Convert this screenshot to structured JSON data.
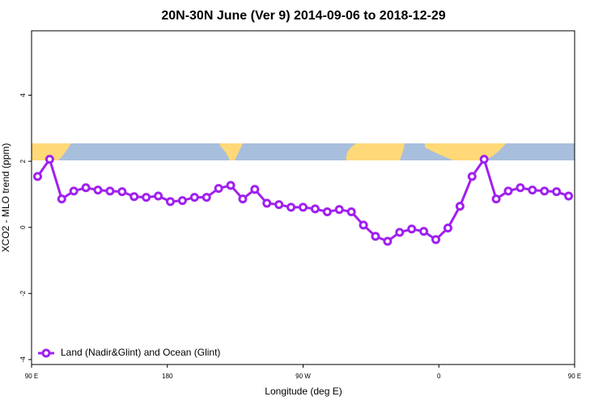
{
  "chart_data": {
    "type": "line",
    "title": "20N-30N June (Ver 9)   2014-09-06 to 2018-12-29",
    "x_label": "Longitude (deg E)",
    "y_label": "XCO2 - MLO trend (ppm)",
    "x": [
      94,
      102,
      110,
      118,
      126,
      134,
      142,
      150,
      158,
      166,
      174,
      182,
      190,
      198,
      206,
      214,
      222,
      230,
      238,
      246,
      254,
      262,
      270,
      278,
      286,
      294,
      302,
      310,
      318,
      326,
      334,
      342,
      350,
      358,
      366,
      374,
      382,
      390,
      398,
      406,
      414,
      422,
      430,
      438,
      446
    ],
    "series": [
      {
        "name": "Land (Nadir&Glint) and Ocean (Glint)",
        "color": "#a020f0",
        "values": [
          1.54,
          2.06,
          0.86,
          1.1,
          1.2,
          1.13,
          1.1,
          1.08,
          0.93,
          0.91,
          0.95,
          0.78,
          0.81,
          0.91,
          0.91,
          1.18,
          1.27,
          0.86,
          1.15,
          0.73,
          0.69,
          0.61,
          0.61,
          0.56,
          0.47,
          0.54,
          0.47,
          0.07,
          -0.27,
          -0.42,
          -0.15,
          -0.05,
          -0.12,
          -0.37,
          -0.02,
          0.64,
          1.54,
          2.06,
          0.86,
          1.1,
          1.2,
          1.13,
          1.1,
          1.08,
          0.95
        ]
      }
    ],
    "xlim": [
      90,
      450
    ],
    "xticks": [
      {
        "value": 90,
        "label": "90 E"
      },
      {
        "value": 180,
        "label": "180"
      },
      {
        "value": 270,
        "label": "90 W"
      },
      {
        "value": 360,
        "label": "0"
      },
      {
        "value": 450,
        "label": "90 E"
      }
    ],
    "ylim": [
      -4.15,
      5.95
    ],
    "yticks": [
      -4,
      -2,
      0,
      2,
      4
    ],
    "legend": "bottom-left"
  }
}
